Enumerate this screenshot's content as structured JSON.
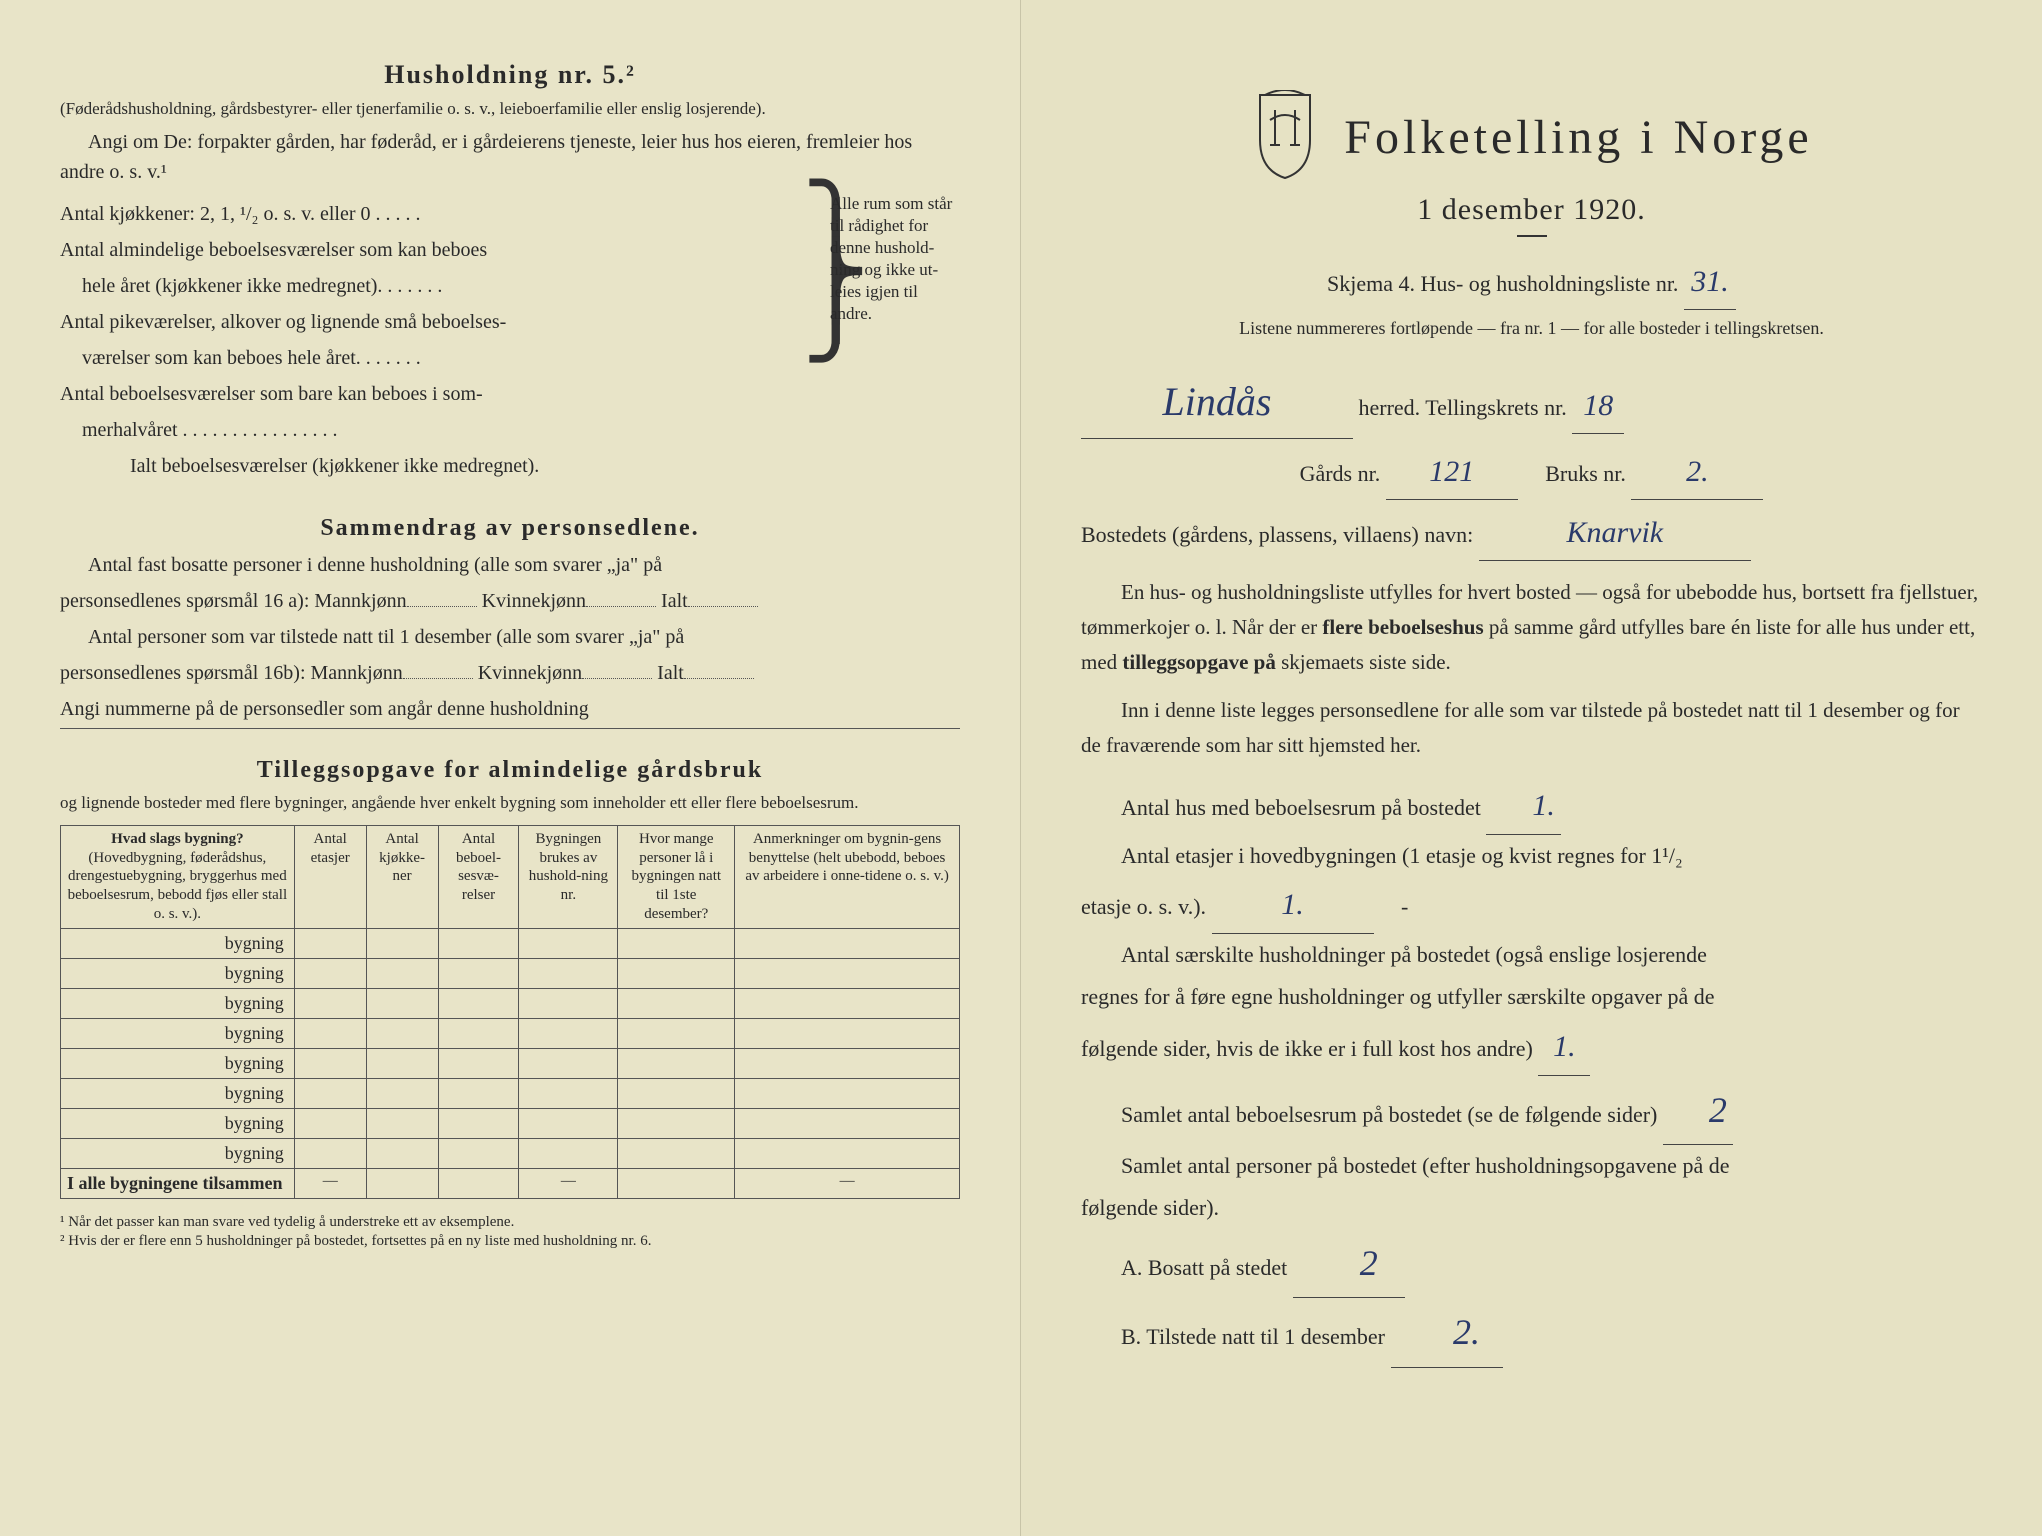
{
  "left": {
    "heading": "Husholdning nr. 5.²",
    "sub1": "(Føderådshusholdning, gårdsbestyrer- eller tjenerfamilie o. s. v., leieboerfamilie eller enslig losjerende).",
    "sub2": "Angi om De: forpakter gården, har føderåd, er i gårdeierens tjeneste, leier hus hos eieren, fremleier hos andre o. s. v.¹",
    "rooms": {
      "l1": "Antal kjøkkener: 2, 1, ¹/₂ o. s. v. eller 0 . . . . .",
      "l2a": "Antal almindelige beboelsesværelser som kan beboes",
      "l2b": "hele året (kjøkkener ikke medregnet). . . . . . .",
      "l3a": "Antal pikeværelser, alkover og lignende små beboelses-",
      "l3b": "værelser som kan beboes hele året. . . . . . .",
      "l4a": "Antal beboelsesværelser som bare kan beboes i som-",
      "l4b": "merhalvåret . . . . . . . . . . . . . . . .",
      "total": "Ialt beboelsesværelser (kjøkkener ikke medregnet).",
      "braceText": "Alle rum som står til rådighet for denne hushold-ning og ikke ut-leies igjen til andre."
    },
    "summaryTitle": "Sammendrag av personsedlene.",
    "sum1a": "Antal fast bosatte personer i denne husholdning (alle som svarer „ja\" på",
    "sum1b": "personsedlenes spørsmål 16 a): Mannkjønn",
    "sum1c": "Kvinnekjønn",
    "sum1d": "Ialt",
    "sum2a": "Antal personer som var tilstede natt til 1 desember (alle som svarer „ja\" på",
    "sum2b": "personsedlenes spørsmål 16b): Mannkjønn",
    "sum3": "Angi nummerne på de personsedler som angår denne husholdning",
    "tilleggTitle": "Tilleggsopgave for almindelige gårdsbruk",
    "tilleggSub": "og lignende bosteder med flere bygninger, angående hver enkelt bygning som inneholder ett eller flere beboelsesrum.",
    "table": {
      "h1": "Hvad slags bygning?",
      "h1sub": "(Hovedbygning, føderådshus, drengestuebygning, bryggerhus med beboelsesrum, bebodd fjøs eller stall o. s. v.).",
      "h2": "Antal etasjer",
      "h3": "Antal kjøkke-ner",
      "h4": "Antal beboel-sesvæ-relser",
      "h5": "Bygningen brukes av hushold-ning nr.",
      "h6": "Hvor mange personer lå i bygningen natt til 1ste desember?",
      "h7": "Anmerkninger om bygnin-gens benyttelse (helt ubebodd, beboes av arbeidere i onne-tidene o. s. v.)",
      "rowLabel": "bygning",
      "totalRow": "I alle bygningene tilsammen"
    },
    "fn1": "¹ Når det passer kan man svare ved tydelig å understreke ett av eksemplene.",
    "fn2": "² Hvis der er flere enn 5 husholdninger på bostedet, fortsettes på en ny liste med husholdning nr. 6."
  },
  "right": {
    "title": "Folketelling i Norge",
    "date": "1 desember 1920.",
    "skjema": "Skjema 4.  Hus- og husholdningsliste nr.",
    "listNr": "31.",
    "listNote": "Listene nummereres fortløpende — fra nr. 1 — for alle bosteder i tellingskretsen.",
    "herred": "Lindås",
    "herredLabel": "herred.   Tellingskrets nr.",
    "kretsNr": "18",
    "gardsLabel": "Gårds nr.",
    "gardsNr": "121",
    "bruksLabel": "Bruks nr.",
    "bruksNr": "2.",
    "bostedLabel": "Bostedets (gårdens, plassens, villaens) navn:",
    "bostedName": "Knarvik",
    "para1": "En hus- og husholdningsliste utfylles for hvert bosted — også for ubebodde hus, bortsett fra fjellstuer, tømmerkojer o. l. Når der er flere beboelseshus på samme gård utfylles bare én liste for alle hus under ett, med tilleggsopgave på skjemaets siste side.",
    "para2": "Inn i denne liste legges personsedlene for alle som var tilstede på bostedet natt til 1 desember og for de fraværende som har sitt hjemsted her.",
    "q1": "Antal hus med beboelsesrum på bostedet",
    "q1v": "1.",
    "q2a": "Antal etasjer i hovedbygningen (1 etasje og kvist regnes for 1¹/₂",
    "q2b": "etasje o. s. v.).",
    "q2v": "1.",
    "q3a": "Antal særskilte husholdninger på bostedet (også enslige losjerende",
    "q3b": "regnes for å føre egne husholdninger og utfyller særskilte opgaver på de",
    "q3c": "følgende sider, hvis de ikke er i full kost hos andre)",
    "q3v": "1.",
    "q4": "Samlet antal beboelsesrum på bostedet (se de følgende sider)",
    "q4v": "2",
    "q5a": "Samlet antal personer på bostedet (efter husholdningsopgavene på de",
    "q5b": "følgende sider).",
    "qA": "A.  Bosatt på stedet",
    "qAv": "2",
    "qB": "B.  Tilstede natt til 1 desember",
    "qBv": "2."
  }
}
